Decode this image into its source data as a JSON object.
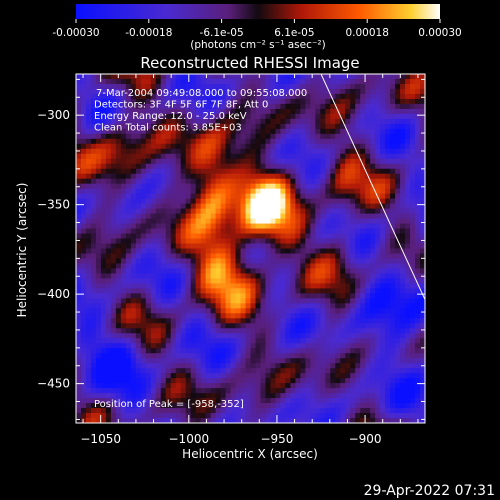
{
  "colorbar": {
    "ticks": [
      "-0.00030",
      "-0.00018",
      "-6.1e-05",
      "6.1e-05",
      "0.00018",
      "0.00030"
    ],
    "units_label": "(photons cm⁻² s⁻¹ asec⁻²)",
    "colormap": "blue-purple-red-yellow-white"
  },
  "chart_data": {
    "type": "heatmap",
    "title": "Reconstructed RHESSI Image",
    "xlabel": "Heliocentric X (arcsec)",
    "ylabel": "Heliocentric Y (arcsec)",
    "xlim": [
      -1064,
      -866
    ],
    "ylim": [
      -472,
      -277
    ],
    "xticks": [
      -1050,
      -1000,
      -950,
      -900
    ],
    "yticks": [
      -300,
      -350,
      -400,
      -450
    ],
    "value_range": [
      -0.0003,
      0.0003
    ],
    "peak": [
      -958,
      -352
    ],
    "limb_line": [
      [
        -925,
        -277
      ],
      [
        -866,
        -403
      ]
    ],
    "annotations": [
      "7-Mar-2004 09:49:08.000 to 09:55:08.000",
      "Detectors: 3F 4F 5F 6F 7F 8F, Att 0",
      "Energy Range: 12.0 - 25.0 keV",
      "Clean     Total counts: 3.85E+03"
    ],
    "peak_label": "Position of Peak = [-958,-352]"
  },
  "footer": {
    "timestamp": "29-Apr-2022 07:31"
  }
}
